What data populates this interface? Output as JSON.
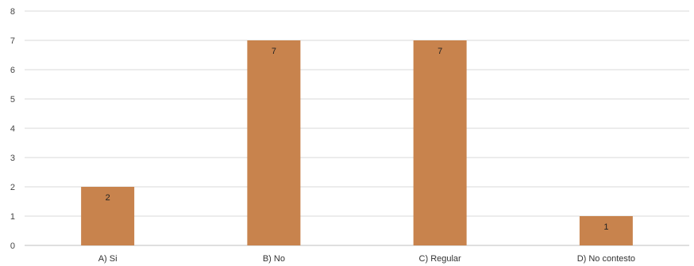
{
  "chart_data": {
    "type": "bar",
    "categories": [
      "A) Si",
      "B) No",
      "C) Regular",
      "D) No contesto"
    ],
    "values": [
      2,
      7,
      7,
      1
    ],
    "data_labels": [
      "2",
      "7",
      "7",
      "1"
    ],
    "title": "",
    "xlabel": "",
    "ylabel": "",
    "ylim": [
      0,
      8
    ],
    "yticks": [
      "0",
      "1",
      "2",
      "3",
      "4",
      "5",
      "6",
      "7",
      "8"
    ],
    "grid": true,
    "legend": "none",
    "bar_color": "#C8834D",
    "grid_color": "#D9D9D9"
  }
}
